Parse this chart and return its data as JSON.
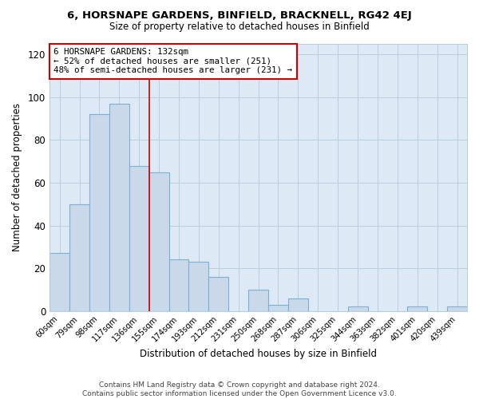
{
  "title1": "6, HORSNAPE GARDENS, BINFIELD, BRACKNELL, RG42 4EJ",
  "title2": "Size of property relative to detached houses in Binfield",
  "xlabel": "Distribution of detached houses by size in Binfield",
  "ylabel": "Number of detached properties",
  "categories": [
    "60sqm",
    "79sqm",
    "98sqm",
    "117sqm",
    "136sqm",
    "155sqm",
    "174sqm",
    "193sqm",
    "212sqm",
    "231sqm",
    "250sqm",
    "268sqm",
    "287sqm",
    "306sqm",
    "325sqm",
    "344sqm",
    "363sqm",
    "382sqm",
    "401sqm",
    "420sqm",
    "439sqm"
  ],
  "values": [
    27,
    50,
    92,
    97,
    68,
    65,
    24,
    23,
    16,
    0,
    10,
    3,
    6,
    0,
    0,
    2,
    0,
    0,
    2,
    0,
    2
  ],
  "bar_color": "#c9d9ea",
  "bar_edge_color": "#7bafd4",
  "vline_x_index": 4,
  "vline_color": "#cc0000",
  "annotation_line1": "6 HORSNAPE GARDENS: 132sqm",
  "annotation_line2": "← 52% of detached houses are smaller (251)",
  "annotation_line3": "48% of semi-detached houses are larger (231) →",
  "annotation_box_edgecolor": "#cc0000",
  "annotation_box_facecolor": "#ffffff",
  "ylim": [
    0,
    125
  ],
  "yticks": [
    0,
    20,
    40,
    60,
    80,
    100,
    120
  ],
  "footer": "Contains HM Land Registry data © Crown copyright and database right 2024.\nContains public sector information licensed under the Open Government Licence v3.0.",
  "plot_bg_color": "#ddeaf5",
  "fig_bg_color": "#ffffff",
  "grid_color": "#b8cfe0"
}
